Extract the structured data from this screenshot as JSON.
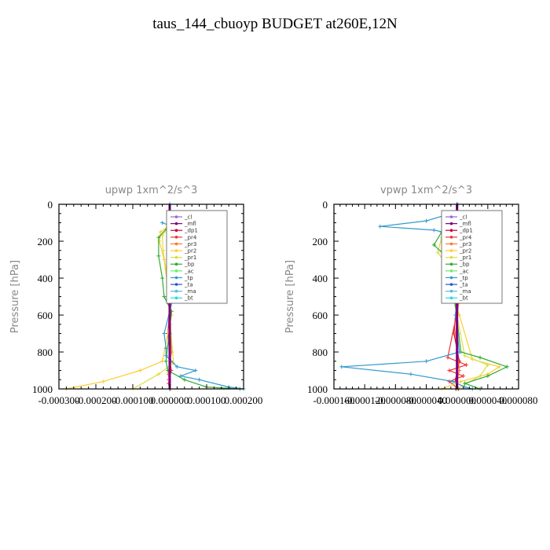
{
  "page": {
    "title": "taus_144_cbuoyp  BUDGET at260E,12N"
  },
  "chart_data": [
    {
      "type": "line",
      "title": "upwp   1xm^2/s^3",
      "xlabel": "",
      "ylabel": "Pressure [hPa]",
      "xlim": [
        -0.0003,
        0.0002
      ],
      "ylim": [
        1000,
        0
      ],
      "x_ticks": [
        "-0.000300",
        "-0.000200",
        "-0.000100",
        "0.000000",
        "0.000100",
        "0.000200"
      ],
      "x_tick_values": [
        -0.0003,
        -0.0002,
        -0.0001,
        0,
        0.0001,
        0.0002
      ],
      "y_ticks": [
        0,
        200,
        400,
        600,
        800,
        1000
      ],
      "legend": "top-right",
      "series": [
        {
          "name": "_cl",
          "color": "#9966cc",
          "x": [
            0,
            0
          ],
          "y": [
            0,
            1000
          ]
        },
        {
          "name": "_mfl",
          "color": "#800080",
          "x": [
            0,
            0
          ],
          "y": [
            0,
            1000
          ]
        },
        {
          "name": "_dp1",
          "color": "#cc0033",
          "x": [
            2e-06,
            -3e-06,
            3e-06,
            -2e-06,
            2e-06,
            -4e-06,
            3e-06,
            -2e-06,
            1e-06
          ],
          "y": [
            100,
            200,
            300,
            400,
            500,
            700,
            850,
            950,
            1000
          ]
        },
        {
          "name": "_pr4",
          "color": "#ee3333",
          "x": [
            3e-06,
            -4e-06,
            4e-06,
            -3e-06,
            2e-06,
            -5e-06,
            4e-06,
            -3e-06,
            2e-06
          ],
          "y": [
            100,
            200,
            300,
            400,
            500,
            700,
            900,
            970,
            1000
          ]
        },
        {
          "name": "_pr3",
          "color": "#ff7733",
          "x": [
            2e-06,
            4e-06,
            -2e-06,
            3e-06,
            1e-06,
            5e-06,
            -4e-06,
            2e-06
          ],
          "y": [
            100,
            200,
            300,
            400,
            600,
            800,
            920,
            1000
          ]
        },
        {
          "name": "_pr2",
          "color": "#ffcc33",
          "x": [
            1e-05,
            -2.5e-05,
            -2.8e-05,
            -1.5e-05,
            -5e-06,
            5e-06,
            -2e-05,
            -8e-05,
            -0.00018,
            -0.00028
          ],
          "y": [
            100,
            150,
            200,
            300,
            450,
            600,
            850,
            900,
            960,
            1000
          ]
        },
        {
          "name": "_pr1",
          "color": "#dddd44",
          "x": [
            5e-06,
            -2e-05,
            -1.8e-05,
            -1e-05,
            -5e-06,
            2e-06,
            1e-05,
            -3e-05,
            -0.0001
          ],
          "y": [
            100,
            170,
            250,
            350,
            500,
            650,
            860,
            920,
            1000
          ]
        },
        {
          "name": "_bp",
          "color": "#33aa33",
          "x": [
            5e-06,
            -3e-05,
            -3e-05,
            -2e-05,
            -1.5e-05,
            5e-06,
            -1e-05,
            -5e-06,
            4e-05,
            0.0001,
            0.00019
          ],
          "y": [
            100,
            180,
            280,
            400,
            500,
            580,
            850,
            900,
            950,
            990,
            1000
          ]
        },
        {
          "name": "_ac",
          "color": "#66ee66",
          "x": [
            1e-06,
            -1e-06,
            1e-06,
            -1e-06
          ],
          "y": [
            0,
            300,
            700,
            1000
          ]
        },
        {
          "name": "_tp",
          "color": "#3399cc",
          "x": [
            -2e-05,
            2e-05,
            5e-05,
            3e-05,
            3e-05,
            2.5e-05,
            1e-05,
            -1.5e-05,
            -1e-05,
            -1e-05,
            2e-05,
            7e-05,
            3e-05,
            8e-05,
            0.00016,
            0.0002
          ],
          "y": [
            100,
            130,
            170,
            210,
            250,
            350,
            500,
            700,
            780,
            820,
            880,
            900,
            930,
            950,
            990,
            1000
          ]
        },
        {
          "name": "_ta",
          "color": "#2255cc",
          "x": [
            1e-06,
            -1e-06,
            1e-06,
            -1e-06
          ],
          "y": [
            0,
            300,
            700,
            1000
          ]
        },
        {
          "name": "_ma",
          "color": "#55bbdd",
          "x": [
            1e-06,
            -1e-06,
            1e-06,
            -1e-06
          ],
          "y": [
            0,
            300,
            700,
            1000
          ]
        },
        {
          "name": "_bt",
          "color": "#22dddd",
          "x": [
            1e-06,
            -1e-06,
            1e-06,
            -1e-06
          ],
          "y": [
            0,
            300,
            700,
            1000
          ]
        }
      ]
    },
    {
      "type": "line",
      "title": "vpwp   1xm^2/s^3",
      "xlabel": "",
      "ylabel": "Pressure [hPa]",
      "xlim": [
        -0.00016,
        8e-05
      ],
      "ylim": [
        1000,
        0
      ],
      "x_ticks": [
        "-0.000160",
        "-0.000120",
        "-0.000080",
        "-0.000040",
        "0.000000",
        "0.000040",
        "0.000080"
      ],
      "x_tick_values": [
        -0.00016,
        -0.00012,
        -8e-05,
        -4e-05,
        0,
        4e-05,
        8e-05
      ],
      "y_ticks": [
        0,
        200,
        400,
        600,
        800,
        1000
      ],
      "legend": "top-right",
      "series": [
        {
          "name": "_cl",
          "color": "#9966cc",
          "x": [
            0,
            0
          ],
          "y": [
            0,
            1000
          ]
        },
        {
          "name": "_mfl",
          "color": "#800080",
          "x": [
            0,
            0
          ],
          "y": [
            0,
            1000
          ]
        },
        {
          "name": "_dp1",
          "color": "#cc0033",
          "x": [
            2e-06,
            -3e-06,
            2e-06,
            -4e-06,
            3e-06,
            -2e-06,
            2e-06
          ],
          "y": [
            100,
            200,
            400,
            700,
            850,
            950,
            1000
          ]
        },
        {
          "name": "_pr4",
          "color": "#ee3333",
          "x": [
            3e-06,
            -8e-06,
            5e-06,
            -4e-06,
            4e-06,
            -1.2e-05,
            1.2e-05,
            -1e-05,
            8e-06,
            -1e-05,
            2e-06
          ],
          "y": [
            80,
            120,
            160,
            220,
            500,
            830,
            870,
            900,
            930,
            960,
            1000
          ]
        },
        {
          "name": "_pr3",
          "color": "#ff7733",
          "x": [
            2e-06,
            -3e-06,
            4e-06,
            -2e-06,
            3e-06,
            -2e-06
          ],
          "y": [
            100,
            250,
            450,
            700,
            900,
            1000
          ]
        },
        {
          "name": "_pr2",
          "color": "#ffcc33",
          "x": [
            1e-05,
            -1.5e-05,
            -2e-05,
            -1.5e-05,
            -8e-06,
            3e-06,
            2e-05,
            5.5e-05,
            4e-05,
            5e-06,
            -2e-05
          ],
          "y": [
            100,
            150,
            250,
            350,
            450,
            600,
            840,
            880,
            920,
            960,
            1000
          ]
        },
        {
          "name": "_pr1",
          "color": "#dddd44",
          "x": [
            5e-06,
            -2e-05,
            -2.5e-05,
            -1e-05,
            -5e-06,
            1e-05,
            4e-05,
            3e-05,
            0
          ],
          "y": [
            100,
            180,
            260,
            350,
            500,
            820,
            870,
            930,
            1000
          ]
        },
        {
          "name": "_bp",
          "color": "#33aa33",
          "x": [
            6e-06,
            -2e-05,
            -3e-05,
            -1.5e-05,
            -1e-05,
            -3e-06,
            5e-06,
            3e-05,
            6.5e-05,
            4e-05,
            1e-05,
            3e-05
          ],
          "y": [
            100,
            150,
            220,
            280,
            400,
            520,
            800,
            830,
            880,
            930,
            970,
            1000
          ]
        },
        {
          "name": "_ac",
          "color": "#66ee66",
          "x": [
            1e-06,
            -1e-06,
            1e-06,
            -1e-06
          ],
          "y": [
            0,
            300,
            700,
            1000
          ]
        },
        {
          "name": "_tp",
          "color": "#3399cc",
          "x": [
            0,
            -4e-05,
            -0.0001,
            -3e-05,
            5e-06,
            3e-06,
            -2e-06,
            3e-06,
            -4e-05,
            -0.00015,
            -6e-05,
            -5e-06,
            1e-05,
            2e-05
          ],
          "y": [
            40,
            90,
            120,
            140,
            170,
            300,
            600,
            800,
            850,
            880,
            920,
            960,
            990,
            1000
          ]
        },
        {
          "name": "_ta",
          "color": "#2255cc",
          "x": [
            1e-06,
            -1e-06,
            1e-06,
            -1e-06
          ],
          "y": [
            0,
            300,
            700,
            1000
          ]
        },
        {
          "name": "_ma",
          "color": "#55bbdd",
          "x": [
            1e-06,
            -1e-06,
            1e-06,
            -1e-06
          ],
          "y": [
            0,
            300,
            700,
            1000
          ]
        },
        {
          "name": "_bt",
          "color": "#22dddd",
          "x": [
            1e-06,
            -1e-06,
            1e-06,
            -1e-06
          ],
          "y": [
            0,
            300,
            700,
            1000
          ]
        }
      ]
    }
  ]
}
